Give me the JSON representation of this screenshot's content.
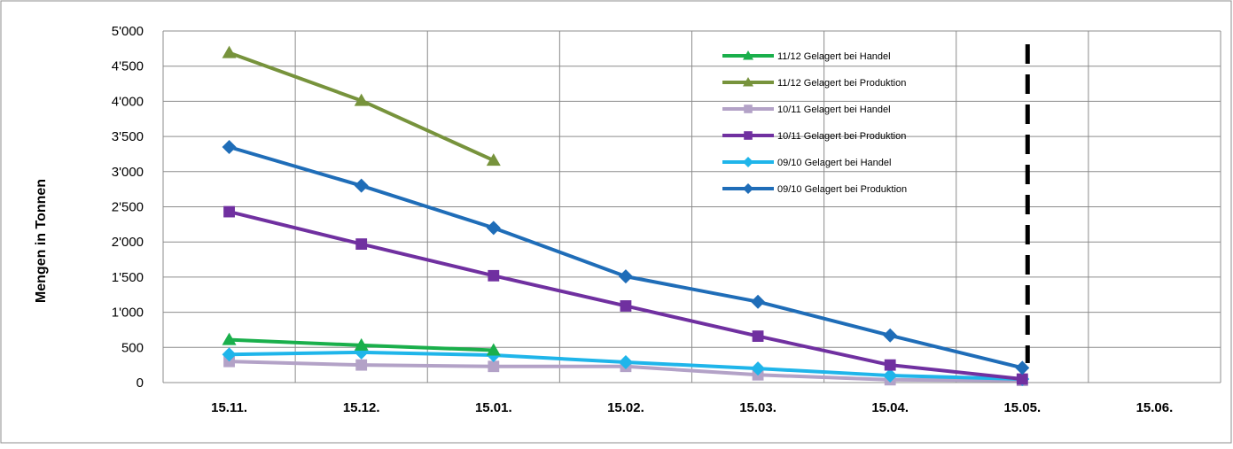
{
  "chart_data": {
    "type": "line",
    "title": "",
    "xlabel": "",
    "ylabel": "Mengen in Tonnen",
    "ylim": [
      0,
      5000
    ],
    "yticks": [
      "0",
      "500",
      "1'000",
      "1'500",
      "2'000",
      "2'500",
      "3'000",
      "3'500",
      "4'000",
      "4'500",
      "5'000"
    ],
    "ytick_values": [
      0,
      500,
      1000,
      1500,
      2000,
      2500,
      3000,
      3500,
      4000,
      4500,
      5000
    ],
    "categories": [
      "15.11.",
      "15.12.",
      "15.01.",
      "15.02.",
      "15.03.",
      "15.04.",
      "15.05.",
      "15.06."
    ],
    "grid": true,
    "legend_position": "top-right",
    "reference_line": {
      "category_index": 6.04,
      "style": "dashed",
      "color": "#000000"
    },
    "series": [
      {
        "name": "11/12 Gelagert bei Handel",
        "color": "#1aaf4b",
        "marker": "triangle",
        "values": [
          610,
          530,
          460,
          null,
          null,
          null,
          null,
          null
        ]
      },
      {
        "name": "11/12 Gelagert bei Produktion",
        "color": "#77933c",
        "marker": "triangle",
        "values": [
          4690,
          4010,
          3160,
          null,
          null,
          null,
          null,
          null
        ]
      },
      {
        "name": "10/11 Gelagert bei Handel",
        "color": "#b3a2c7",
        "marker": "square",
        "values": [
          300,
          250,
          230,
          230,
          110,
          40,
          30,
          null
        ]
      },
      {
        "name": "10/11 Gelagert bei Produktion",
        "color": "#7030a0",
        "marker": "square",
        "values": [
          2430,
          1970,
          1520,
          1090,
          660,
          250,
          50,
          null
        ]
      },
      {
        "name": "09/10 Gelagert bei Handel",
        "color": "#1fb5ea",
        "marker": "diamond",
        "values": [
          400,
          430,
          390,
          290,
          200,
          100,
          50,
          null
        ]
      },
      {
        "name": "09/10 Gelagert bei Produktion",
        "color": "#1f6db8",
        "marker": "diamond",
        "values": [
          3350,
          2800,
          2200,
          1510,
          1150,
          670,
          210,
          null
        ]
      }
    ]
  }
}
